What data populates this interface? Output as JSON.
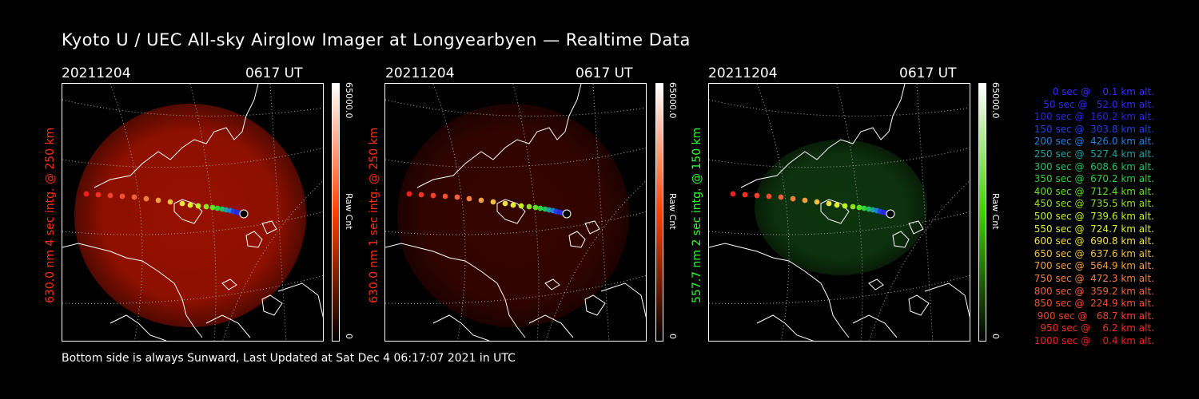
{
  "title": "Kyoto U / UEC All-sky Airglow Imager at Longyearbyen — Realtime Data",
  "footer": "Bottom side is always Sunward, Last Updated at Sat Dec  4 06:17:07 2021 in UTC",
  "panels": [
    {
      "date": "20211204",
      "time": "0617 UT",
      "ylabel": "630.0 nm 4 sec intg. @ 250 km",
      "cbar_max": "65000.0",
      "cbar_min": "0",
      "cbar_title": "Raw Cnt",
      "glow_color": "#b01400",
      "glow_opacity": 0.85,
      "label_color": "#ff3010",
      "cbar_color": "#ff4000"
    },
    {
      "date": "20211204",
      "time": "0617 UT",
      "ylabel": "630.0 nm 1 sec intg. @ 250 km",
      "cbar_max": "65000.0",
      "cbar_min": "0",
      "cbar_title": "Raw Cnt",
      "glow_color": "#3a0500",
      "glow_opacity": 0.9,
      "label_color": "#ff3010",
      "cbar_color": "#ff4000"
    },
    {
      "date": "20211204",
      "time": "0617 UT",
      "ylabel": "557.7 nm 2 sec intg. @ 150 km",
      "cbar_max": "65000.0",
      "cbar_min": "0",
      "cbar_title": "Raw Cnt",
      "glow_color": "#0f3a0f",
      "glow_opacity": 0.9,
      "label_color": "#30ff30",
      "cbar_color": "#40d000"
    }
  ],
  "legend": [
    {
      "text": "   0 sec @    0.1 km alt.",
      "color": "#3030ff"
    },
    {
      "text": "  50 sec @   52.0 km alt.",
      "color": "#2c2cf0"
    },
    {
      "text": " 100 sec @  160.2 km alt.",
      "color": "#2828e0"
    },
    {
      "text": " 150 sec @  303.8 km alt.",
      "color": "#2040e0"
    },
    {
      "text": " 200 sec @  426.0 km alt.",
      "color": "#2080e0"
    },
    {
      "text": " 250 sec @  527.4 km alt.",
      "color": "#20a0a0"
    },
    {
      "text": " 300 sec @  608.6 km alt.",
      "color": "#20c060"
    },
    {
      "text": " 350 sec @  670.2 km alt.",
      "color": "#30d040"
    },
    {
      "text": " 400 sec @  712.4 km alt.",
      "color": "#60e020"
    },
    {
      "text": " 450 sec @  735.5 km alt.",
      "color": "#90e020"
    },
    {
      "text": " 500 sec @  739.6 km alt.",
      "color": "#c0f020"
    },
    {
      "text": " 550 sec @  724.7 km alt.",
      "color": "#e0f030"
    },
    {
      "text": " 600 sec @  690.8 km alt.",
      "color": "#f0e040"
    },
    {
      "text": " 650 sec @  637.6 km alt.",
      "color": "#f0c040"
    },
    {
      "text": " 700 sec @  564.9 km alt.",
      "color": "#f0a040"
    },
    {
      "text": " 750 sec @  472.3 km alt.",
      "color": "#f08040"
    },
    {
      "text": " 800 sec @  359.2 km alt.",
      "color": "#f06040"
    },
    {
      "text": " 850 sec @  224.9 km alt.",
      "color": "#f05030"
    },
    {
      "text": " 900 sec @   68.7 km alt.",
      "color": "#f04030"
    },
    {
      "text": " 950 sec @    6.2 km alt.",
      "color": "#f03020"
    },
    {
      "text": "1000 sec @    0.4 km alt.",
      "color": "#f02020"
    }
  ]
}
